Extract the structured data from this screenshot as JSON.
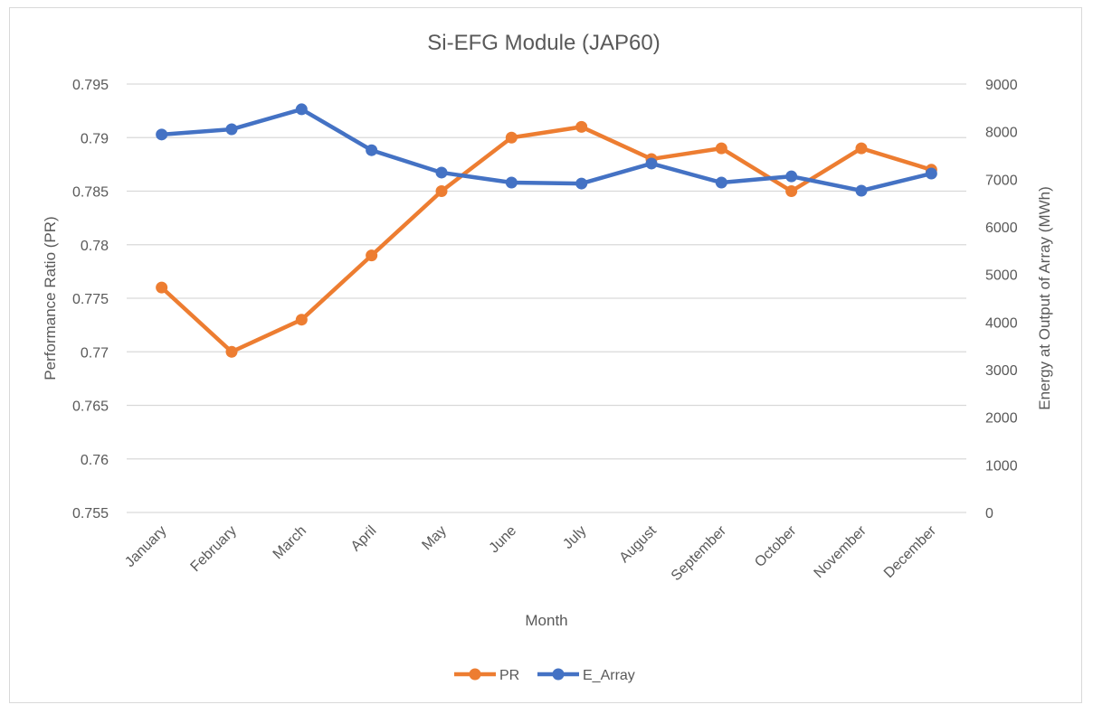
{
  "chart_data": {
    "type": "line",
    "title": "Si-EFG Module (JAP60)",
    "xlabel": "Month",
    "ylabel": "Performance Ratio (PR)",
    "y2label": "Energy at Output of Array (MWh)",
    "categories": [
      "January",
      "February",
      "March",
      "April",
      "May",
      "June",
      "July",
      "August",
      "September",
      "October",
      "November",
      "December"
    ],
    "ylim": [
      0.755,
      0.795
    ],
    "y2lim": [
      0,
      9000
    ],
    "yticks": [
      "0.755",
      "0.76",
      "0.765",
      "0.77",
      "0.775",
      "0.78",
      "0.785",
      "0.79",
      "0.795"
    ],
    "y2ticks": [
      "0",
      "1000",
      "2000",
      "3000",
      "4000",
      "5000",
      "6000",
      "7000",
      "8000",
      "9000"
    ],
    "grid": true,
    "legend_position": "bottom",
    "series": [
      {
        "name": "PR",
        "axis": "left",
        "color": "#ED7D31",
        "values": [
          0.776,
          0.77,
          0.773,
          0.779,
          0.785,
          0.79,
          0.791,
          0.788,
          0.789,
          0.785,
          0.789,
          0.787
        ]
      },
      {
        "name": "E_Array",
        "axis": "right",
        "color": "#4472C4",
        "values": [
          7940,
          8050,
          8470,
          7610,
          7140,
          6930,
          6910,
          7330,
          6930,
          7060,
          6760,
          7120
        ]
      }
    ]
  }
}
